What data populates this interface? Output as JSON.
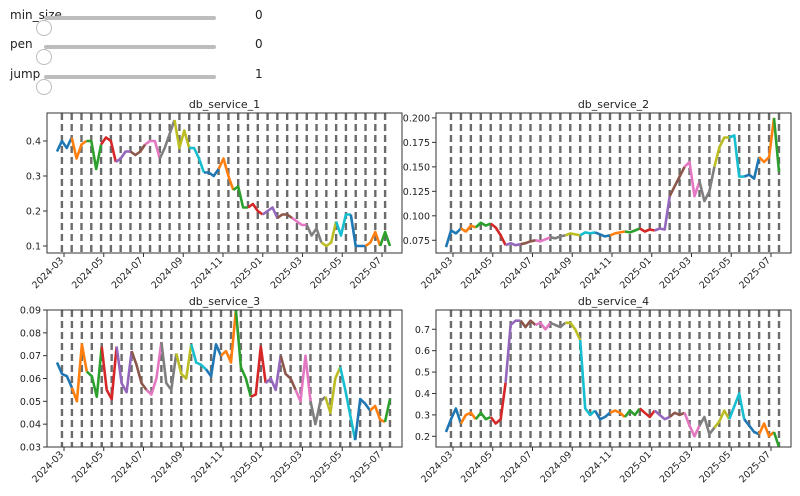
{
  "controls": [
    {
      "label": "min_size",
      "value": "0",
      "fraction": 0.0
    },
    {
      "label": "pen",
      "value": "0",
      "fraction": 0.0
    },
    {
      "label": "jump",
      "value": "1",
      "fraction": 0.0
    }
  ],
  "colors": {
    "axes": "#333333",
    "changepoint": "#6b6b6b",
    "palette": [
      "#1f77b4",
      "#ff7f0e",
      "#2ca02c",
      "#d62728",
      "#9467bd",
      "#8c564b",
      "#e377c2",
      "#7f7f7f",
      "#bcbd22",
      "#17becf"
    ]
  },
  "chart_data": [
    {
      "type": "line",
      "title": "db_service_1",
      "x_tick_labels": [
        "2024-03",
        "2024-05",
        "2024-07",
        "2024-09",
        "2024-11",
        "2025-01",
        "2025-03",
        "2025-05",
        "2025-07"
      ],
      "y_tick_labels": [
        "0.1",
        "0.2",
        "0.3",
        "0.4"
      ],
      "y_ticks": [
        0.1,
        0.2,
        0.3,
        0.4
      ],
      "ylim": [
        0.08,
        0.48
      ],
      "values": [
        0.37,
        0.4,
        0.38,
        0.41,
        0.35,
        0.39,
        0.4,
        0.4,
        0.32,
        0.39,
        0.41,
        0.4,
        0.34,
        0.35,
        0.37,
        0.37,
        0.36,
        0.37,
        0.39,
        0.4,
        0.4,
        0.35,
        0.38,
        0.42,
        0.46,
        0.38,
        0.43,
        0.38,
        0.38,
        0.35,
        0.31,
        0.31,
        0.3,
        0.32,
        0.35,
        0.3,
        0.26,
        0.27,
        0.21,
        0.21,
        0.22,
        0.2,
        0.19,
        0.2,
        0.21,
        0.18,
        0.19,
        0.19,
        0.18,
        0.17,
        0.16,
        0.16,
        0.13,
        0.15,
        0.11,
        0.1,
        0.11,
        0.17,
        0.13,
        0.19,
        0.19,
        0.1,
        0.1,
        0.1,
        0.11,
        0.14,
        0.1,
        0.14,
        0.1
      ]
    },
    {
      "type": "line",
      "title": "db_service_2",
      "x_tick_labels": [
        "2024-03",
        "2024-05",
        "2024-07",
        "2024-09",
        "2024-11",
        "2025-01",
        "2025-03",
        "2025-05",
        "2025-07"
      ],
      "y_tick_labels": [
        "0.075",
        "0.100",
        "0.125",
        "0.150",
        "0.175",
        "0.200"
      ],
      "y_ticks": [
        0.075,
        0.1,
        0.125,
        0.15,
        0.175,
        0.2
      ],
      "ylim": [
        0.062,
        0.205
      ],
      "values": [
        0.068,
        0.085,
        0.082,
        0.087,
        0.084,
        0.09,
        0.088,
        0.093,
        0.09,
        0.092,
        0.088,
        0.08,
        0.07,
        0.072,
        0.07,
        0.071,
        0.072,
        0.074,
        0.075,
        0.074,
        0.076,
        0.078,
        0.077,
        0.079,
        0.08,
        0.082,
        0.081,
        0.08,
        0.083,
        0.082,
        0.083,
        0.081,
        0.079,
        0.08,
        0.082,
        0.083,
        0.084,
        0.083,
        0.085,
        0.087,
        0.084,
        0.086,
        0.085,
        0.087,
        0.086,
        0.12,
        0.13,
        0.14,
        0.15,
        0.155,
        0.12,
        0.135,
        0.115,
        0.125,
        0.15,
        0.17,
        0.18,
        0.18,
        0.182,
        0.14,
        0.14,
        0.142,
        0.138,
        0.16,
        0.155,
        0.16,
        0.2,
        0.145
      ]
    },
    {
      "type": "line",
      "title": "db_service_3",
      "x_tick_labels": [
        "2024-03",
        "2024-05",
        "2024-07",
        "2024-09",
        "2024-11",
        "2025-01",
        "2025-03",
        "2025-05",
        "2025-07"
      ],
      "y_tick_labels": [
        "0.03",
        "0.04",
        "0.05",
        "0.06",
        "0.07",
        "0.08",
        "0.09"
      ],
      "y_ticks": [
        0.03,
        0.04,
        0.05,
        0.06,
        0.07,
        0.08,
        0.09
      ],
      "ylim": [
        0.03,
        0.09
      ],
      "values": [
        0.067,
        0.062,
        0.061,
        0.056,
        0.05,
        0.075,
        0.063,
        0.061,
        0.052,
        0.074,
        0.055,
        0.051,
        0.074,
        0.058,
        0.054,
        0.072,
        0.066,
        0.058,
        0.055,
        0.053,
        0.06,
        0.076,
        0.058,
        0.055,
        0.071,
        0.062,
        0.06,
        0.075,
        0.067,
        0.066,
        0.064,
        0.061,
        0.075,
        0.07,
        0.072,
        0.067,
        0.09,
        0.065,
        0.06,
        0.052,
        0.053,
        0.074,
        0.058,
        0.06,
        0.055,
        0.07,
        0.062,
        0.06,
        0.055,
        0.05,
        0.07,
        0.05,
        0.04,
        0.05,
        0.052,
        0.045,
        0.06,
        0.065,
        0.055,
        0.044,
        0.033,
        0.051,
        0.049,
        0.046,
        0.048,
        0.042,
        0.041,
        0.051
      ]
    },
    {
      "type": "line",
      "title": "db_service_4",
      "x_tick_labels": [
        "2024-03",
        "2024-05",
        "2024-07",
        "2024-09",
        "2024-11",
        "2025-01",
        "2025-03",
        "2025-05",
        "2025-07"
      ],
      "y_tick_labels": [
        "0.2",
        "0.3",
        "0.4",
        "0.5",
        "0.6",
        "0.7"
      ],
      "y_ticks": [
        0.2,
        0.3,
        0.4,
        0.5,
        0.6,
        0.7
      ],
      "ylim": [
        0.15,
        0.79
      ],
      "values": [
        0.22,
        0.28,
        0.33,
        0.26,
        0.3,
        0.31,
        0.28,
        0.31,
        0.28,
        0.29,
        0.26,
        0.28,
        0.45,
        0.72,
        0.74,
        0.74,
        0.71,
        0.74,
        0.72,
        0.73,
        0.7,
        0.73,
        0.72,
        0.71,
        0.73,
        0.73,
        0.7,
        0.65,
        0.33,
        0.3,
        0.32,
        0.28,
        0.29,
        0.31,
        0.32,
        0.31,
        0.29,
        0.32,
        0.3,
        0.33,
        0.31,
        0.29,
        0.32,
        0.3,
        0.28,
        0.29,
        0.31,
        0.3,
        0.31,
        0.25,
        0.2,
        0.25,
        0.29,
        0.21,
        0.24,
        0.27,
        0.32,
        0.28,
        0.34,
        0.4,
        0.28,
        0.25,
        0.22,
        0.21,
        0.26,
        0.2,
        0.22,
        0.15
      ]
    }
  ]
}
